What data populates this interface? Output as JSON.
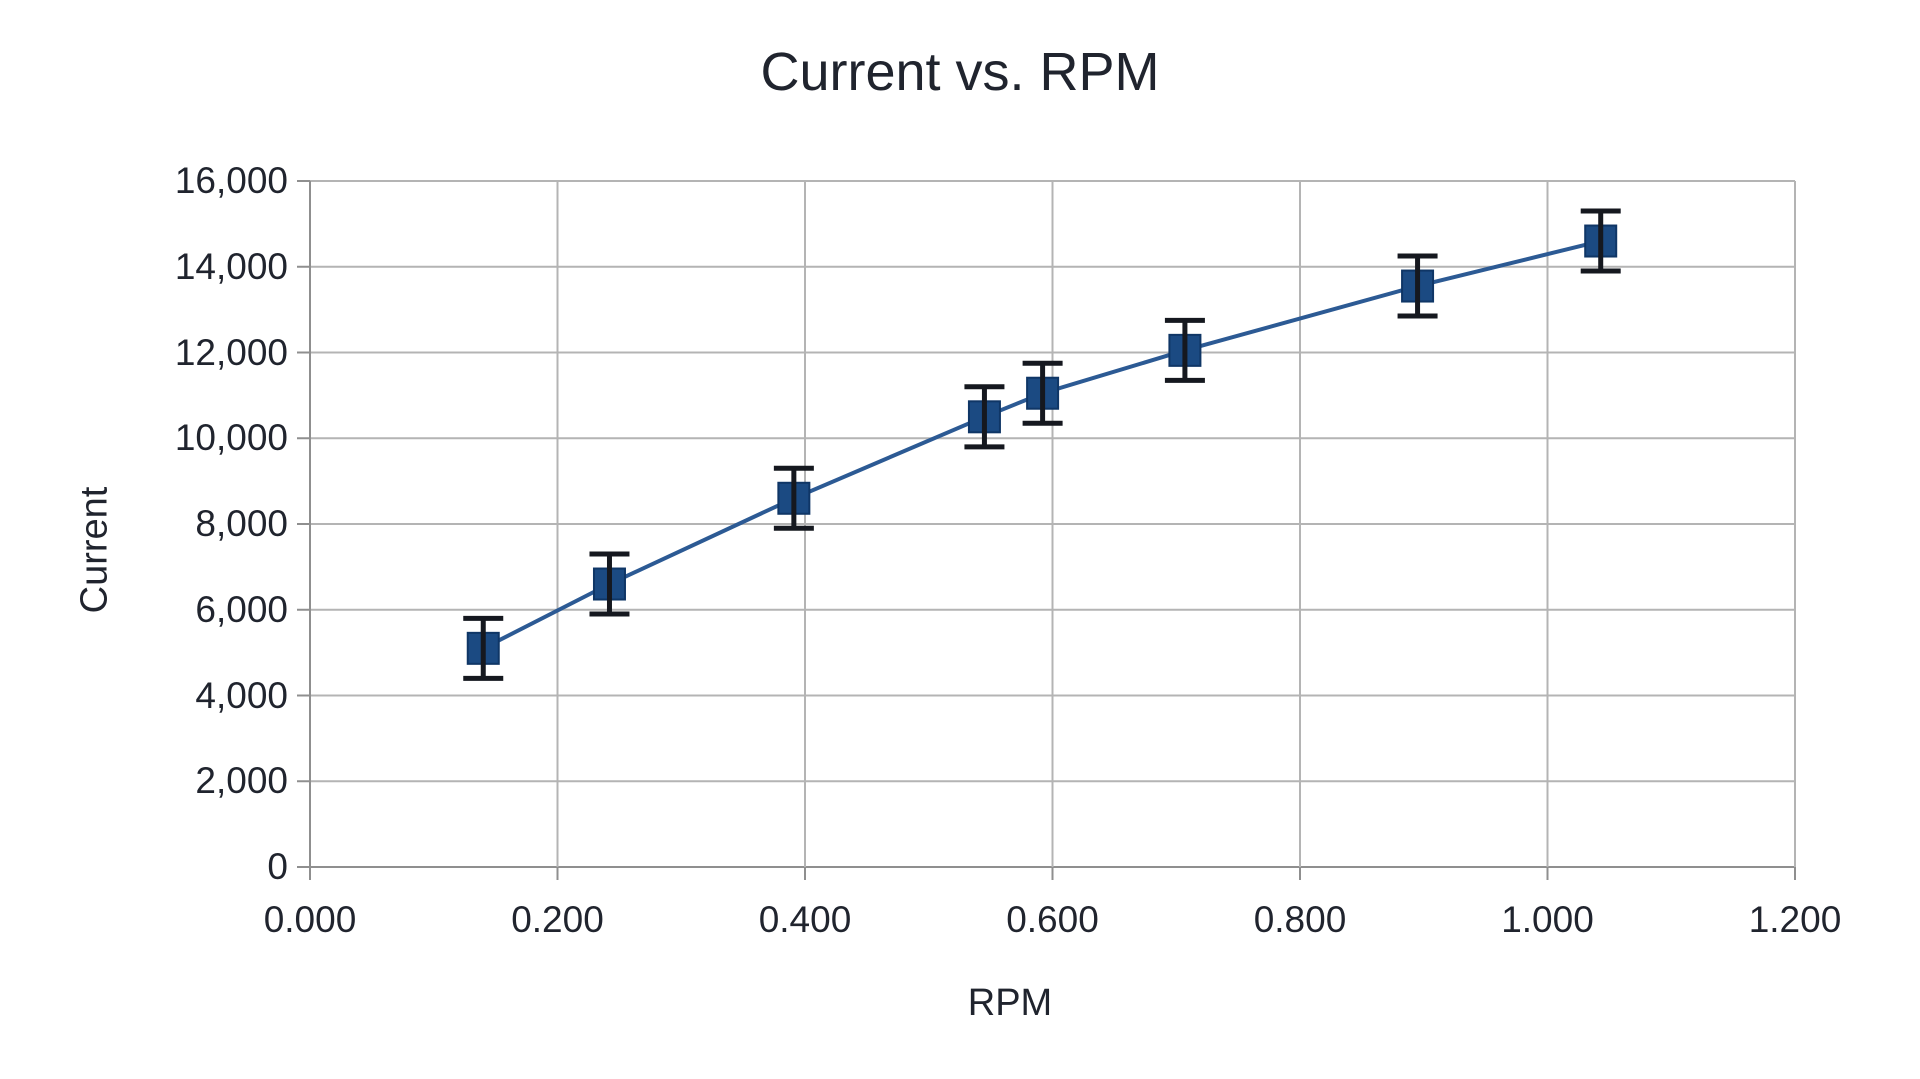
{
  "chart_data": {
    "type": "line",
    "title": "Current vs. RPM",
    "xlabel": "RPM",
    "ylabel": "Current",
    "xlim": [
      0.0,
      1.2
    ],
    "ylim": [
      0,
      16000
    ],
    "grid": true,
    "legend": "none",
    "x_ticks": [
      {
        "value": 0.0,
        "label": "0.000"
      },
      {
        "value": 0.2,
        "label": "0.200"
      },
      {
        "value": 0.4,
        "label": "0.400"
      },
      {
        "value": 0.6,
        "label": "0.600"
      },
      {
        "value": 0.8,
        "label": "0.800"
      },
      {
        "value": 1.0,
        "label": "1.000"
      },
      {
        "value": 1.2,
        "label": "1.200"
      }
    ],
    "y_ticks": [
      {
        "value": 0,
        "label": "0"
      },
      {
        "value": 2000,
        "label": "2,000"
      },
      {
        "value": 4000,
        "label": "4,000"
      },
      {
        "value": 6000,
        "label": "6,000"
      },
      {
        "value": 8000,
        "label": "8,000"
      },
      {
        "value": 10000,
        "label": "10,000"
      },
      {
        "value": 12000,
        "label": "12,000"
      },
      {
        "value": 14000,
        "label": "14,000"
      },
      {
        "value": 16000,
        "label": "16,000"
      }
    ],
    "series": [
      {
        "name": "Current",
        "x": [
          0.14,
          0.242,
          0.391,
          0.545,
          0.592,
          0.707,
          0.895,
          1.043
        ],
        "y": [
          5100,
          6600,
          8600,
          10500,
          11050,
          12050,
          13550,
          14600
        ],
        "y_error": 700,
        "marker": "square",
        "marker_size": 31,
        "marker_fill": "#1b4a82",
        "marker_stroke": "#0f3666",
        "line_color": "#2c5a94",
        "error_color": "#15181f"
      }
    ],
    "colors": {
      "grid": "#b4b4b4",
      "axis": "#8f8f8f",
      "text": "#20242e",
      "background": "#ffffff"
    }
  }
}
